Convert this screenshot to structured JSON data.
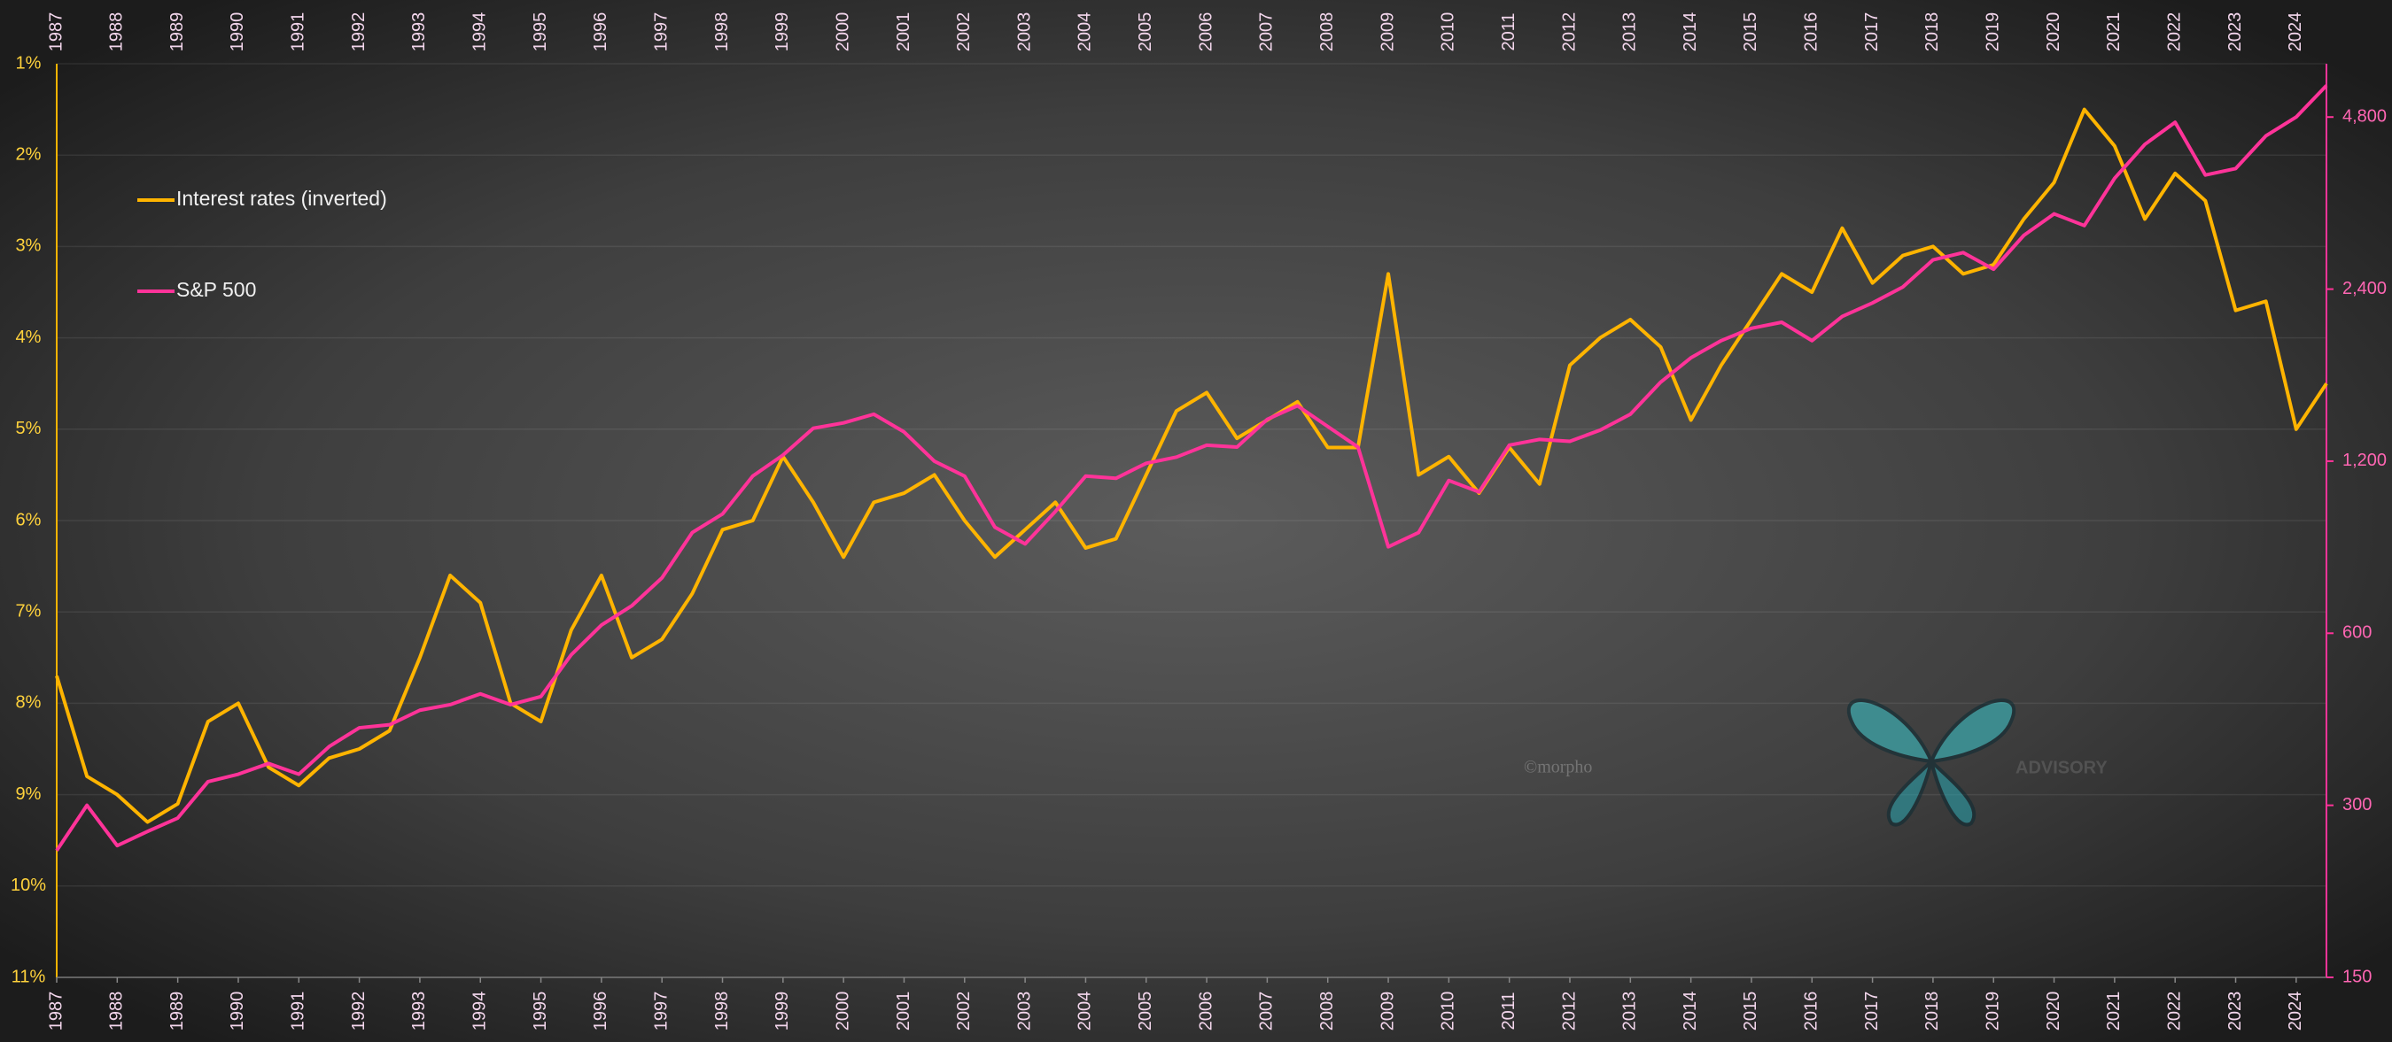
{
  "chart_data": {
    "type": "line",
    "x": [
      1987,
      1987.5,
      1988,
      1988.5,
      1989,
      1989.5,
      1990,
      1990.5,
      1991,
      1991.5,
      1992,
      1992.5,
      1993,
      1993.5,
      1994,
      1994.5,
      1995,
      1995.5,
      1996,
      1996.5,
      1997,
      1997.5,
      1998,
      1998.5,
      1999,
      1999.5,
      2000,
      2000.5,
      2001,
      2001.5,
      2002,
      2002.5,
      2003,
      2003.5,
      2004,
      2004.5,
      2005,
      2005.5,
      2006,
      2006.5,
      2007,
      2007.5,
      2008,
      2008.5,
      2009,
      2009.5,
      2010,
      2010.5,
      2011,
      2011.5,
      2012,
      2012.5,
      2013,
      2013.5,
      2014,
      2014.5,
      2015,
      2015.5,
      2016,
      2016.5,
      2017,
      2017.5,
      2018,
      2018.5,
      2019,
      2019.5,
      2020,
      2020.5,
      2021,
      2021.5,
      2022,
      2022.5,
      2023,
      2023.5,
      2024,
      2024.5
    ],
    "series": [
      {
        "name": "Interest rates (inverted)",
        "color": "#ffb400",
        "axis": "y",
        "values": [
          7.7,
          8.8,
          9.0,
          9.3,
          9.1,
          8.2,
          8.0,
          8.7,
          8.9,
          8.6,
          8.5,
          8.3,
          7.5,
          6.6,
          6.9,
          8.0,
          8.2,
          7.2,
          6.6,
          7.5,
          7.3,
          6.8,
          6.1,
          6.0,
          5.3,
          5.8,
          6.4,
          5.8,
          5.7,
          5.5,
          6.0,
          6.4,
          6.1,
          5.8,
          6.3,
          6.2,
          5.5,
          4.8,
          4.6,
          5.1,
          4.9,
          4.7,
          5.2,
          5.2,
          3.3,
          5.5,
          5.3,
          5.7,
          5.2,
          5.6,
          4.3,
          4.0,
          3.8,
          4.1,
          4.9,
          4.3,
          3.8,
          3.3,
          3.5,
          2.8,
          3.4,
          3.1,
          3.0,
          3.3,
          3.2,
          2.7,
          2.3,
          1.5,
          1.9,
          2.7,
          2.2,
          2.5,
          3.7,
          3.6,
          5.0,
          4.5
        ]
      },
      {
        "name": "S&P 500",
        "color": "#ff3399",
        "axis": "y2",
        "values": [
          250,
          300,
          255,
          270,
          285,
          330,
          340,
          355,
          340,
          380,
          410,
          415,
          440,
          450,
          470,
          450,
          465,
          550,
          620,
          670,
          750,
          900,
          970,
          1130,
          1230,
          1370,
          1400,
          1450,
          1350,
          1200,
          1130,
          920,
          860,
          980,
          1130,
          1120,
          1190,
          1220,
          1280,
          1270,
          1420,
          1500,
          1380,
          1270,
          850,
          900,
          1110,
          1060,
          1280,
          1310,
          1300,
          1360,
          1450,
          1650,
          1820,
          1950,
          2050,
          2100,
          1950,
          2150,
          2270,
          2420,
          2700,
          2780,
          2600,
          2980,
          3250,
          3100,
          3750,
          4300,
          4700,
          3800,
          3900,
          4450,
          4800,
          5450
        ]
      }
    ],
    "xlim": [
      1987,
      2024.5
    ],
    "xticks": [
      1987,
      1988,
      1989,
      1990,
      1991,
      1992,
      1993,
      1994,
      1995,
      1996,
      1997,
      1998,
      1999,
      2000,
      2001,
      2002,
      2003,
      2004,
      2005,
      2006,
      2007,
      2008,
      2009,
      2010,
      2011,
      2012,
      2013,
      2014,
      2015,
      2016,
      2017,
      2018,
      2019,
      2020,
      2021,
      2022,
      2023,
      2024
    ],
    "ylim": [
      11,
      1
    ],
    "yticks": [
      {
        "value": 1,
        "label": "1%"
      },
      {
        "value": 2,
        "label": "2%"
      },
      {
        "value": 3,
        "label": "3%"
      },
      {
        "value": 4,
        "label": "4%"
      },
      {
        "value": 5,
        "label": "5%"
      },
      {
        "value": 6,
        "label": "6%"
      },
      {
        "value": 7,
        "label": "7%"
      },
      {
        "value": 8,
        "label": "8%"
      },
      {
        "value": 9,
        "label": "9%"
      },
      {
        "value": 10,
        "label": "10%"
      },
      {
        "value": 11,
        "label": "11%"
      }
    ],
    "y2lim": [
      150,
      5950
    ],
    "y2ticks": [
      150,
      300,
      600,
      {
        "value": 1200,
        "label": "1,200"
      },
      {
        "value": 2400,
        "label": "2,400"
      },
      {
        "value": 4800,
        "label": "4,800"
      }
    ],
    "y2log": true,
    "grid": true,
    "legend": "upper left",
    "watermark": [
      "©morpho",
      "ADVISORY"
    ]
  }
}
